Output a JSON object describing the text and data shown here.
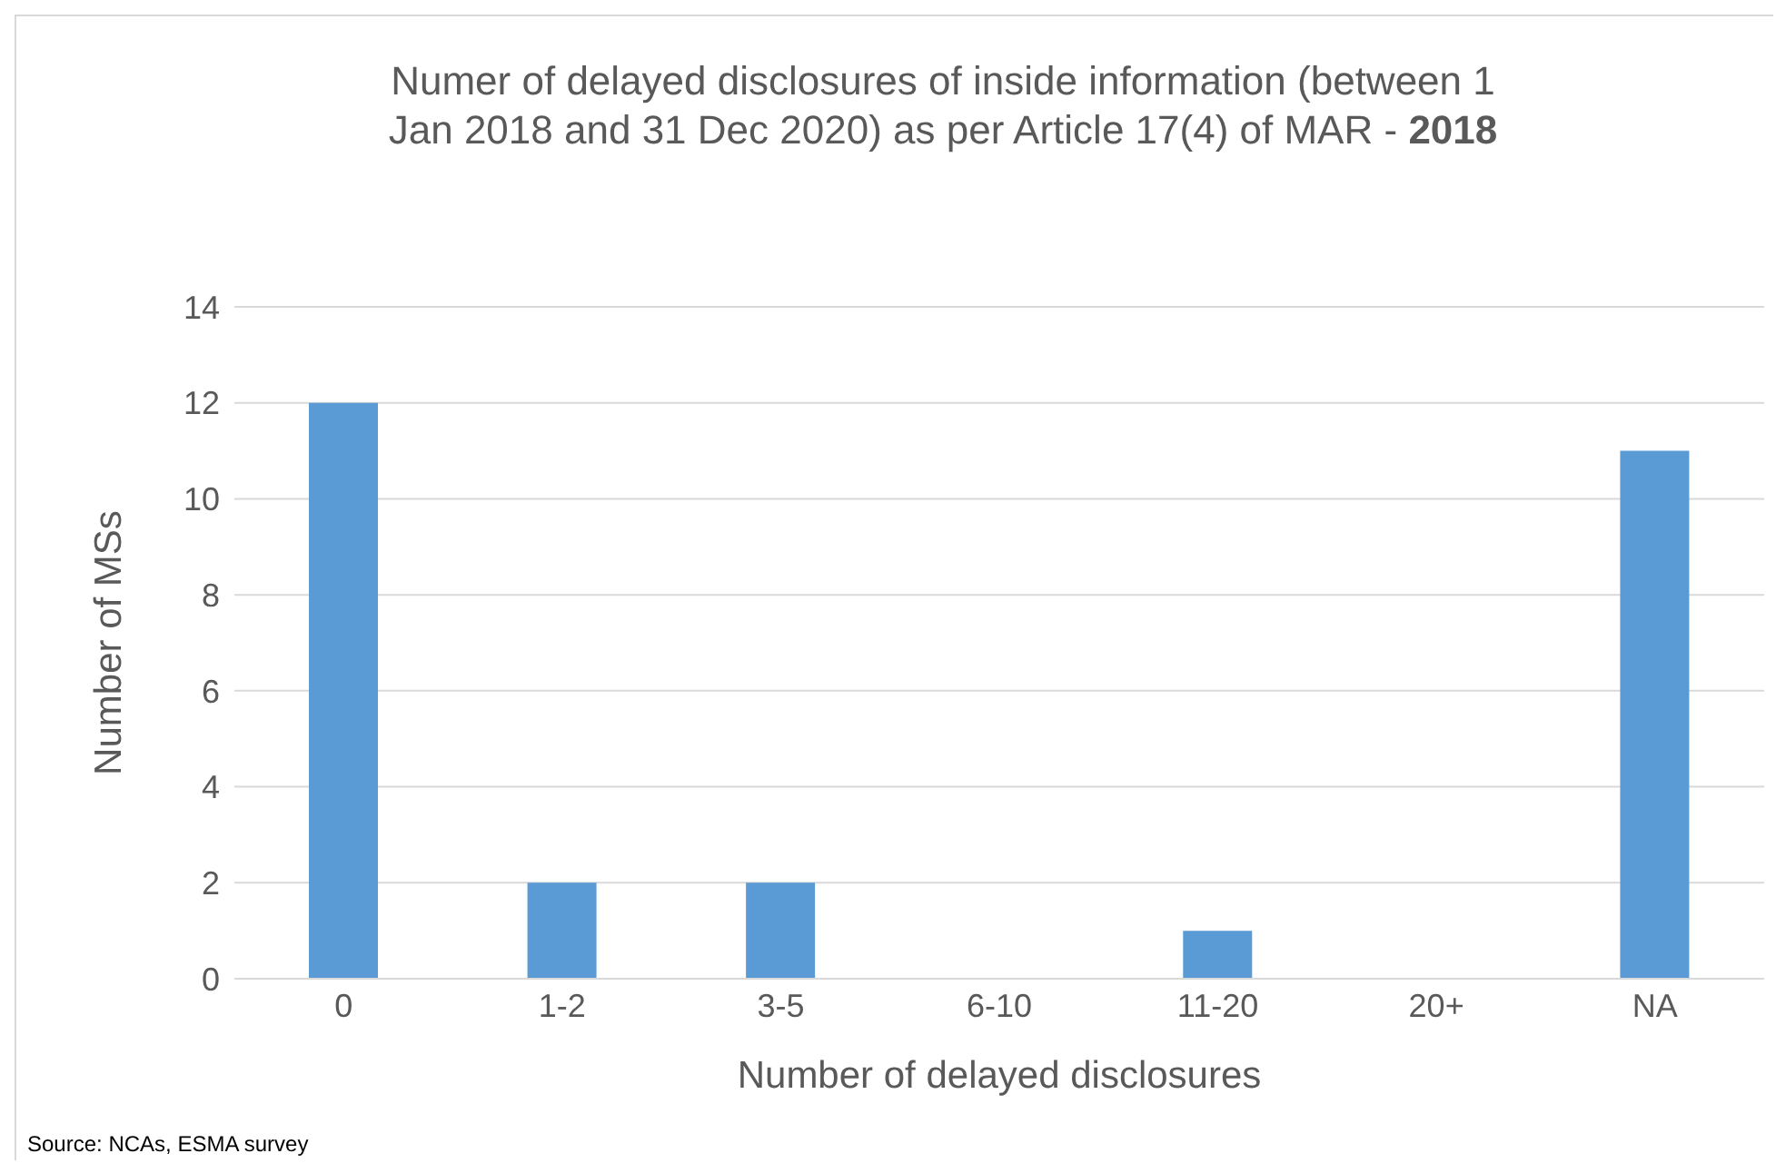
{
  "chart_data": {
    "type": "bar",
    "title": "Numer of delayed disclosures of inside information (between 1 Jan 2018 and 31 Dec 2020) as per Article 17(4) of MAR - 2018",
    "xlabel": "Number of delayed disclosures",
    "ylabel": "Number of MSs",
    "categories": [
      "0",
      "1-2",
      "3-5",
      "6-10",
      "11-20",
      "20+",
      "NA"
    ],
    "values": [
      12,
      2,
      2,
      0,
      1,
      0,
      11
    ],
    "color": "#5b9bd5",
    "ylim": [
      0,
      14
    ],
    "yticks": [
      0,
      2,
      4,
      6,
      8,
      10,
      12,
      14
    ],
    "grid": "y",
    "annotations": [
      "Source: NCAs, ESMA survey"
    ]
  }
}
